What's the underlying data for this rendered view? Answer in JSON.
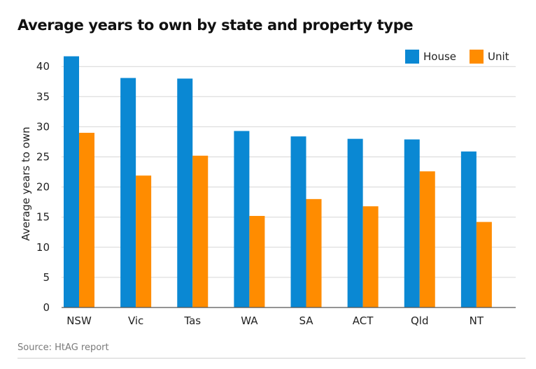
{
  "chart_data": {
    "type": "bar",
    "title": "Average years to own by state and property type",
    "ylabel": "Average years to own",
    "xlabel": "",
    "categories": [
      "NSW",
      "Vic",
      "Tas",
      "WA",
      "SA",
      "ACT",
      "Qld",
      "NT"
    ],
    "series": [
      {
        "name": "House",
        "color": "#0a88d3",
        "values": [
          41.7,
          38.1,
          38.0,
          29.3,
          28.4,
          28.0,
          27.9,
          25.9
        ]
      },
      {
        "name": "Unit",
        "color": "#ff8c00",
        "values": [
          29.0,
          21.9,
          25.2,
          15.2,
          18.0,
          16.8,
          22.6,
          14.2
        ]
      }
    ],
    "ylim": [
      0,
      45
    ],
    "yticks": [
      "0",
      "5",
      "10",
      "15",
      "20",
      "25",
      "30",
      "35",
      "40"
    ],
    "grid": true,
    "legend_position": "top-right"
  },
  "source": "Source: HtAG report"
}
